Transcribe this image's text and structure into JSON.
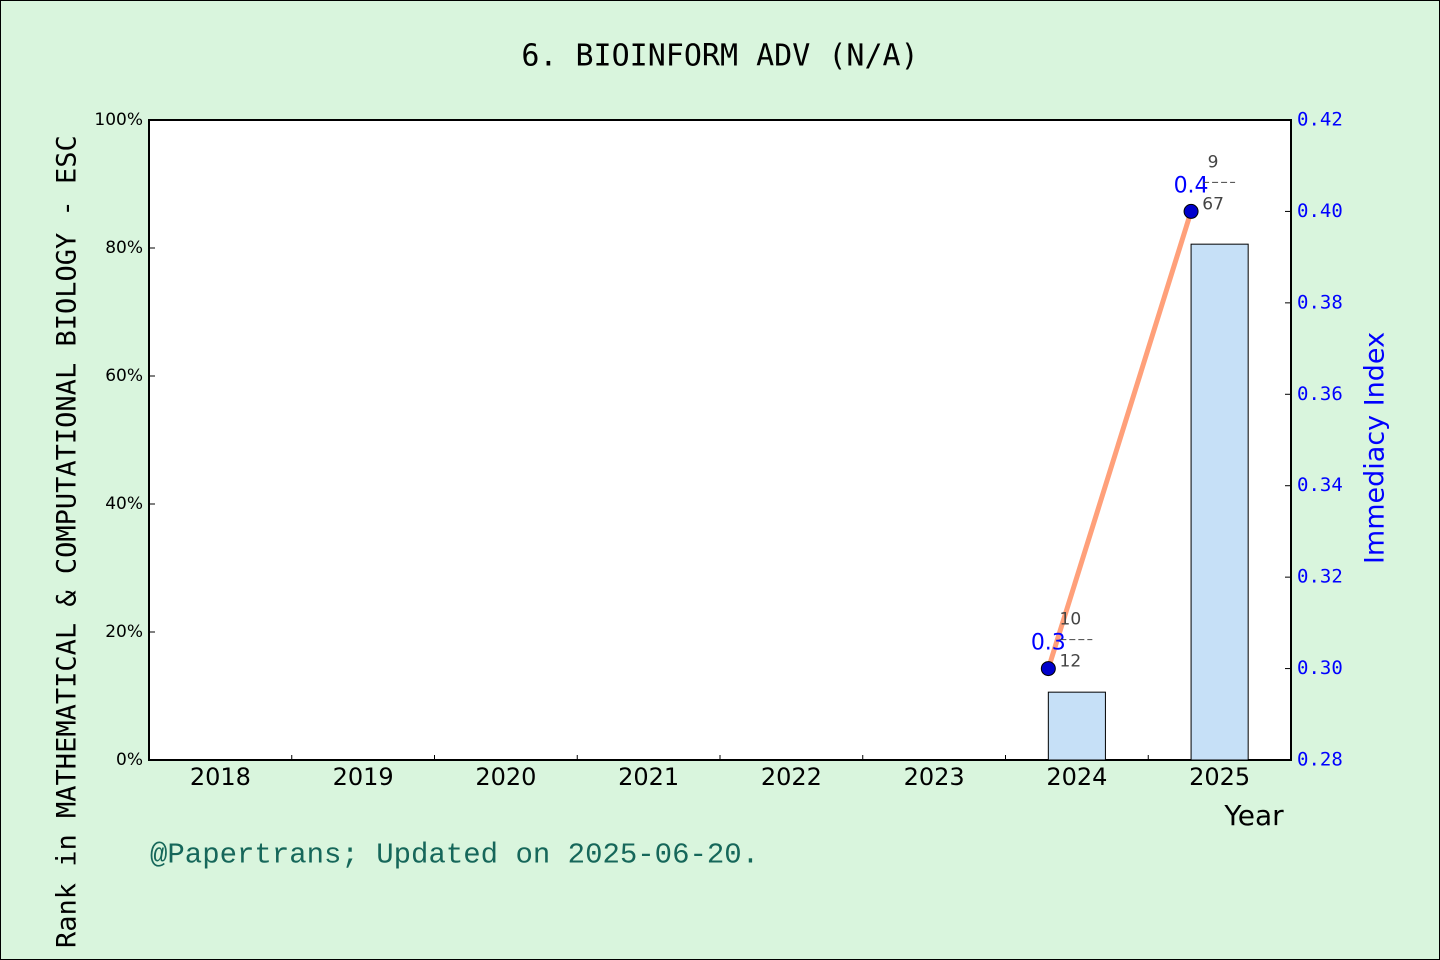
{
  "chart_data": {
    "type": "bar",
    "title": "6. BIOINFORM ADV (N/A)",
    "x_label": "Year",
    "y_label": "Rank in MATHEMATICAL & COMPUTATIONAL BIOLOGY - ESC",
    "y2_label": "Immediacy Index",
    "footer": "@Papertrans; Updated on 2025-06-20.",
    "categories": [
      "2018",
      "2019",
      "2020",
      "2021",
      "2022",
      "2023",
      "2024",
      "2025"
    ],
    "series": [
      {
        "type": "bar",
        "color": "#c6e0f7",
        "values": [
          null,
          null,
          null,
          null,
          null,
          null,
          10.6,
          80.6
        ]
      },
      {
        "type": "line",
        "axis": "y2",
        "color": "#ffa07a",
        "marker_color": "#0000cc",
        "values": [
          null,
          null,
          null,
          null,
          null,
          null,
          0.3,
          0.4
        ],
        "value_labels": [
          null,
          null,
          null,
          null,
          null,
          null,
          "0.3",
          "0.4"
        ],
        "ranks": [
          null,
          null,
          null,
          null,
          null,
          null,
          10,
          9
        ],
        "rank_totals": [
          null,
          null,
          null,
          null,
          null,
          null,
          12,
          67
        ]
      }
    ],
    "ylim": [
      0,
      100
    ],
    "yticks": [
      {
        "value": 0,
        "label": "0%"
      },
      {
        "value": 20,
        "label": "20%"
      },
      {
        "value": 40,
        "label": "40%"
      },
      {
        "value": 60,
        "label": "60%"
      },
      {
        "value": 80,
        "label": "80%"
      },
      {
        "value": 100,
        "label": "100%"
      }
    ],
    "y2lim": [
      0.28,
      0.42
    ],
    "y2ticks": [
      0.28,
      {
        "value": 0.3,
        "label": "0.30"
      },
      0.32,
      0.34,
      0.36,
      0.38,
      {
        "value": 0.4,
        "label": "0.40"
      },
      0.42
    ]
  }
}
